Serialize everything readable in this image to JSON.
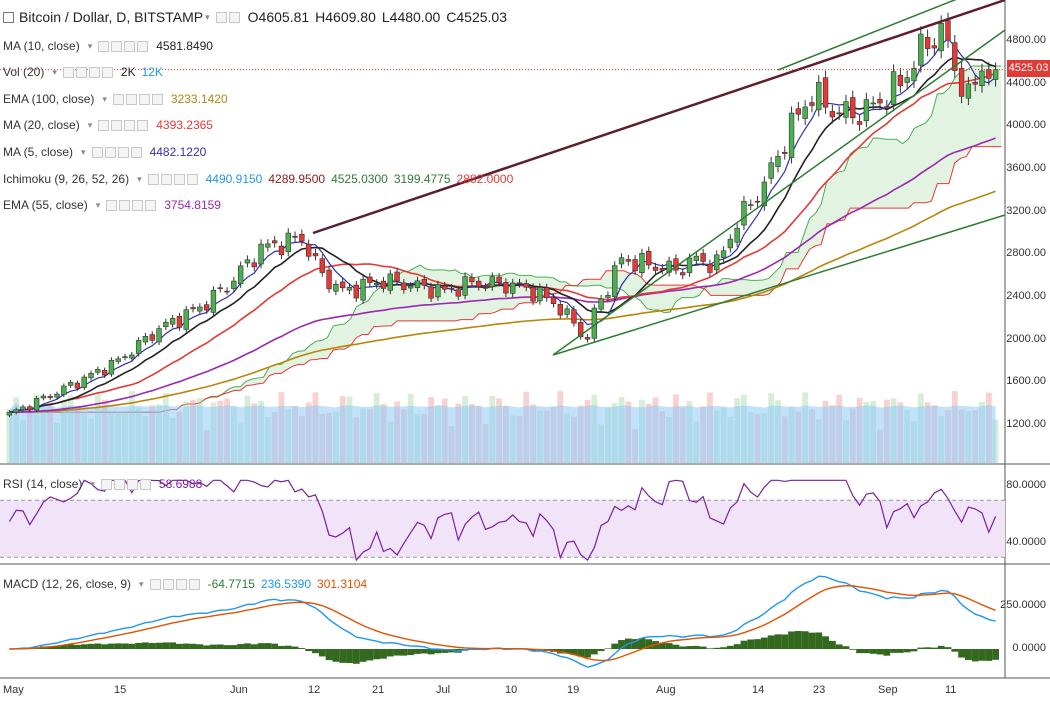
{
  "header": {
    "title": "Bitcoin / Dollar, D, BITSTAMP",
    "open": "O4605.81",
    "high": "H4609.80",
    "low": "L4480.00",
    "close": "C4525.03"
  },
  "indicators": [
    {
      "name": "MA (10, close)",
      "values": [
        "4581.8490"
      ],
      "colors": [
        "#222222"
      ]
    },
    {
      "name": "Vol (20)",
      "values": [
        "2K",
        "12K"
      ],
      "colors": [
        "#222222",
        "#2196f3"
      ]
    },
    {
      "name": "EMA (100, close)",
      "values": [
        "3233.1420"
      ],
      "colors": [
        "#b8860b"
      ]
    },
    {
      "name": "MA (20, close)",
      "values": [
        "4393.2365"
      ],
      "colors": [
        "#e53935"
      ]
    },
    {
      "name": "MA (5, close)",
      "values": [
        "4482.1220"
      ],
      "colors": [
        "#3030b0"
      ]
    },
    {
      "name": "Ichimoku (9, 26, 52, 26)",
      "values": [
        "4490.9150",
        "4289.9500",
        "4525.0300",
        "3199.4775",
        "2882.0000"
      ],
      "colors": [
        "#2196f3",
        "#8b1a1a",
        "#2e7d32",
        "#2e7d32",
        "#e53935"
      ]
    },
    {
      "name": "EMA (55, close)",
      "values": [
        "3754.8159"
      ],
      "colors": [
        "#9c27b0"
      ]
    }
  ],
  "rsi": {
    "name": "RSI (14, close)",
    "value": "58.6988",
    "color": "#7b1fa2"
  },
  "macd": {
    "name": "MACD (12, 26, close, 9)",
    "values": [
      "-64.7715",
      "236.5390",
      "301.3104"
    ],
    "colors": [
      "#2e7d32",
      "#2196f3",
      "#e65100"
    ]
  },
  "price_tag": "4525.03",
  "colors": {
    "up": "#4caf50",
    "down": "#e53935",
    "cloud_up": "#d6eed6",
    "cloud_down": "#f6d4d4"
  },
  "chart_data": {
    "type": "candlestick",
    "x_labels": [
      "May",
      "15",
      "Jun",
      "12",
      "21",
      "Jul",
      "10",
      "19",
      "Aug",
      "14",
      "23",
      "Sep",
      "11"
    ],
    "price_axis": {
      "ticks": [
        "4800.00",
        "4400.00",
        "4000.00",
        "3600.00",
        "3200.00",
        "2800.00",
        "2400.00",
        "2000.00",
        "1600.00",
        "1200.00"
      ],
      "range": [
        880,
        5100
      ],
      "last": 4525.03
    },
    "rsi_axis": {
      "ticks": [
        "80.0000",
        "40.0000"
      ],
      "band": [
        30,
        70
      ],
      "last": 58.6988
    },
    "macd_axis": {
      "ticks": [
        "250.0000",
        "0.0000"
      ],
      "macd": 236.539,
      "signal": 301.3104,
      "hist": -64.7715
    },
    "price_series": [
      "MA 10",
      "MA 20",
      "MA 5",
      "EMA 55",
      "EMA 100",
      "Ichimoku cloud",
      "Volume"
    ]
  }
}
